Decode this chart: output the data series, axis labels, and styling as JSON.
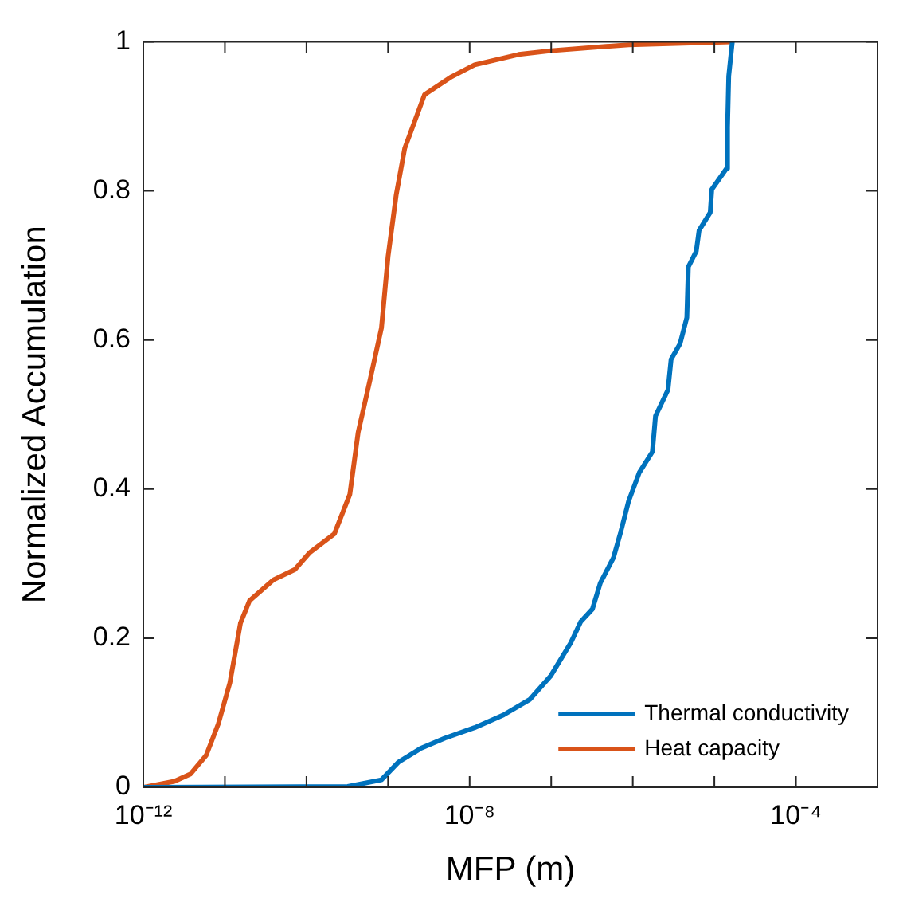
{
  "chart_data": {
    "type": "line",
    "xlabel": "MFP (m)",
    "ylabel": "Normalized Accumulation",
    "log": "x",
    "xlim": [
      1e-12,
      0.001
    ],
    "ylim": [
      0,
      1
    ],
    "xticks": [
      {
        "value": 1e-12,
        "label": "10⁻¹²"
      },
      {
        "value": 1e-11,
        "label": null
      },
      {
        "value": 1e-10,
        "label": null
      },
      {
        "value": 1e-09,
        "label": null
      },
      {
        "value": 1e-08,
        "label": "10⁻⁸"
      },
      {
        "value": 1e-07,
        "label": null
      },
      {
        "value": 1e-06,
        "label": null
      },
      {
        "value": 1e-05,
        "label": null
      },
      {
        "value": 0.0001,
        "label": "10⁻⁴"
      },
      {
        "value": 0.001,
        "label": null
      }
    ],
    "yticks": [
      0,
      0.2,
      0.4,
      0.6,
      0.8,
      1
    ],
    "grid": false,
    "legend": "bottom right",
    "marker": "none",
    "line_style": "solid",
    "series": [
      {
        "name": "Thermal conductivity",
        "color": "#0072bd",
        "x": [
          1e-12,
          3.2e-10,
          8.3e-10,
          1.35e-09,
          2.5e-09,
          5e-09,
          1.15e-08,
          2.6e-08,
          5.5e-08,
          9.8e-08,
          1.74e-07,
          2.3e-07,
          3.2e-07,
          4e-07,
          5.8e-07,
          7.1e-07,
          8.9e-07,
          1.2e-06,
          1.74e-06,
          1.9e-06,
          2.7e-06,
          2.95e-06,
          3.8e-06,
          4.6e-06,
          4.8e-06,
          6e-06,
          6.5e-06,
          8.9e-06,
          9.3e-06,
          1.41e-05,
          1.45e-05,
          1.5e-05,
          1.66e-05
        ],
        "values": [
          0,
          0.001,
          0.01,
          0.034,
          0.052,
          0.066,
          0.08,
          0.097,
          0.118,
          0.149,
          0.194,
          0.222,
          0.239,
          0.274,
          0.308,
          0.342,
          0.384,
          0.422,
          0.45,
          0.498,
          0.533,
          0.574,
          0.595,
          0.63,
          0.698,
          0.719,
          0.747,
          0.771,
          0.802,
          0.83,
          0.885,
          0.954,
          1.0
        ]
      },
      {
        "name": "Heat capacity",
        "color": "#d95319",
        "x": [
          1e-12,
          2.4e-12,
          3.8e-12,
          5.9e-12,
          8.3e-12,
          1.15e-11,
          1.55e-11,
          2e-11,
          3.9e-11,
          7.2e-11,
          1.1e-10,
          2.2e-10,
          3.4e-10,
          4.3e-10,
          6e-10,
          8.3e-10,
          1e-09,
          1.26e-09,
          1.6e-09,
          2.8e-09,
          6e-09,
          1.15e-08,
          4e-08,
          1e-07,
          8.9e-07,
          1.6e-05
        ],
        "values": [
          0,
          0.008,
          0.018,
          0.043,
          0.085,
          0.14,
          0.22,
          0.25,
          0.278,
          0.292,
          0.315,
          0.34,
          0.393,
          0.476,
          0.546,
          0.616,
          0.712,
          0.795,
          0.857,
          0.929,
          0.953,
          0.969,
          0.983,
          0.988,
          0.996,
          1.0
        ]
      }
    ]
  }
}
